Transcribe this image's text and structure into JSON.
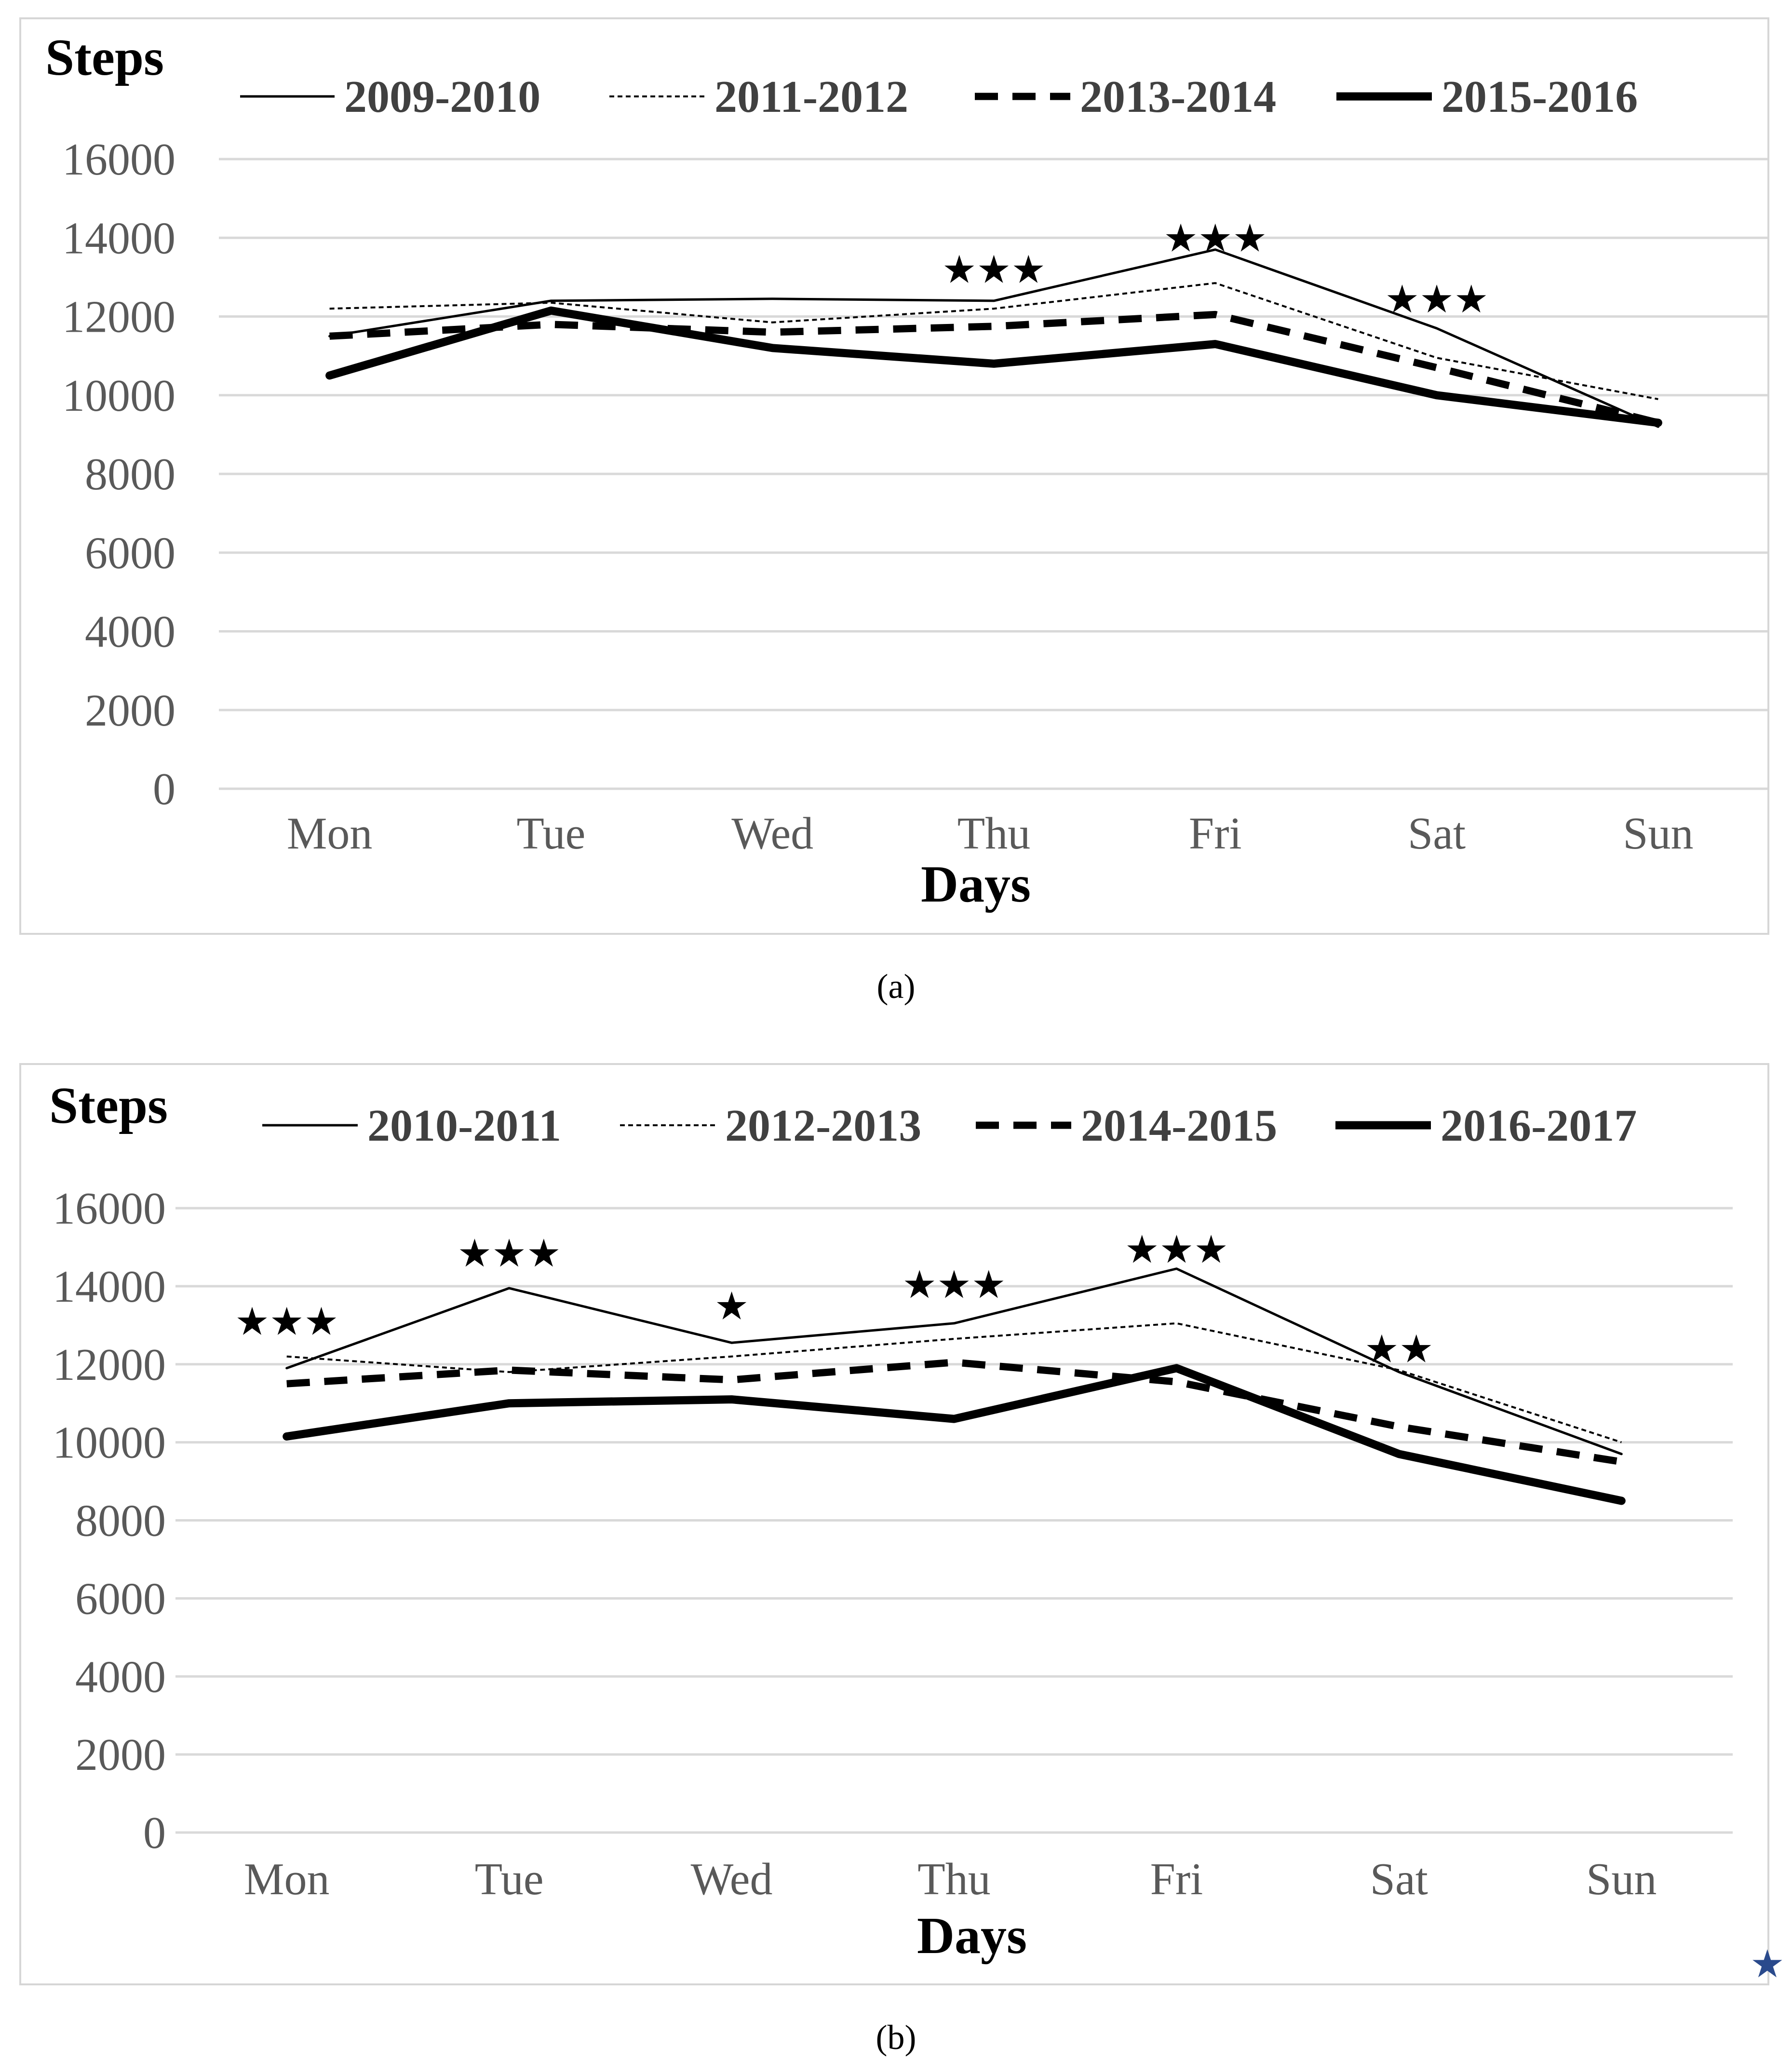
{
  "figure": {
    "caption_a": "(a)",
    "caption_b": "(b)",
    "corner_marker": "★"
  },
  "chart_data": [
    {
      "type": "line",
      "panel": "a",
      "ylabel": "Steps",
      "xlabel": "Days",
      "categories": [
        "Mon",
        "Tue",
        "Wed",
        "Thu",
        "Fri",
        "Sat",
        "Sun"
      ],
      "yticks": [
        0,
        2000,
        4000,
        6000,
        8000,
        10000,
        12000,
        14000,
        16000
      ],
      "ylim": [
        0,
        16000
      ],
      "grid": true,
      "legend_position": "top",
      "series": [
        {
          "name": "2009-2010",
          "style": "thin-solid",
          "values": [
            11500,
            12400,
            12450,
            12400,
            13700,
            11700,
            9200
          ]
        },
        {
          "name": "2011-2012",
          "style": "thin-dashed",
          "values": [
            12200,
            12350,
            11850,
            12200,
            12850,
            10950,
            9900
          ]
        },
        {
          "name": "2013-2014",
          "style": "thick-dashed",
          "values": [
            11500,
            11800,
            11600,
            11750,
            12050,
            10700,
            9300
          ]
        },
        {
          "name": "2015-2016",
          "style": "thick-solid",
          "values": [
            10500,
            12150,
            11200,
            10800,
            11300,
            10000,
            9300
          ]
        }
      ],
      "annotations": [
        {
          "day": "Thu",
          "text": "★★★",
          "value": 13200
        },
        {
          "day": "Fri",
          "text": "★★★",
          "value": 14000
        },
        {
          "day": "Sat",
          "text": "★★★",
          "value": 12450
        }
      ]
    },
    {
      "type": "line",
      "panel": "b",
      "ylabel": "Steps",
      "xlabel": "Days",
      "categories": [
        "Mon",
        "Tue",
        "Wed",
        "Thu",
        "Fri",
        "Sat",
        "Sun"
      ],
      "yticks": [
        0,
        2000,
        4000,
        6000,
        8000,
        10000,
        12000,
        14000,
        16000
      ],
      "ylim": [
        0,
        16000
      ],
      "grid": true,
      "legend_position": "top",
      "series": [
        {
          "name": "2010-2011",
          "style": "thin-solid",
          "values": [
            11900,
            13950,
            12550,
            13050,
            14450,
            11800,
            9700
          ]
        },
        {
          "name": "2012-2013",
          "style": "thin-dashed",
          "values": [
            12200,
            11800,
            12200,
            12650,
            13050,
            11850,
            10000
          ]
        },
        {
          "name": "2014-2015",
          "style": "thick-dashed",
          "values": [
            11500,
            11850,
            11600,
            12050,
            11550,
            10400,
            9500
          ]
        },
        {
          "name": "2016-2017",
          "style": "thick-solid",
          "values": [
            10150,
            11000,
            11100,
            10600,
            11900,
            9700,
            8500
          ]
        }
      ],
      "annotations": [
        {
          "day": "Mon",
          "text": "★★★",
          "value": 13100
        },
        {
          "day": "Tue",
          "text": "★★★",
          "value": 14850
        },
        {
          "day": "Wed",
          "text": "★",
          "value": 13500
        },
        {
          "day": "Thu",
          "text": "★★★",
          "value": 14050
        },
        {
          "day": "Fri",
          "text": "★★★",
          "value": 14950
        },
        {
          "day": "Sat",
          "text": "★★",
          "value": 12400
        }
      ]
    }
  ]
}
